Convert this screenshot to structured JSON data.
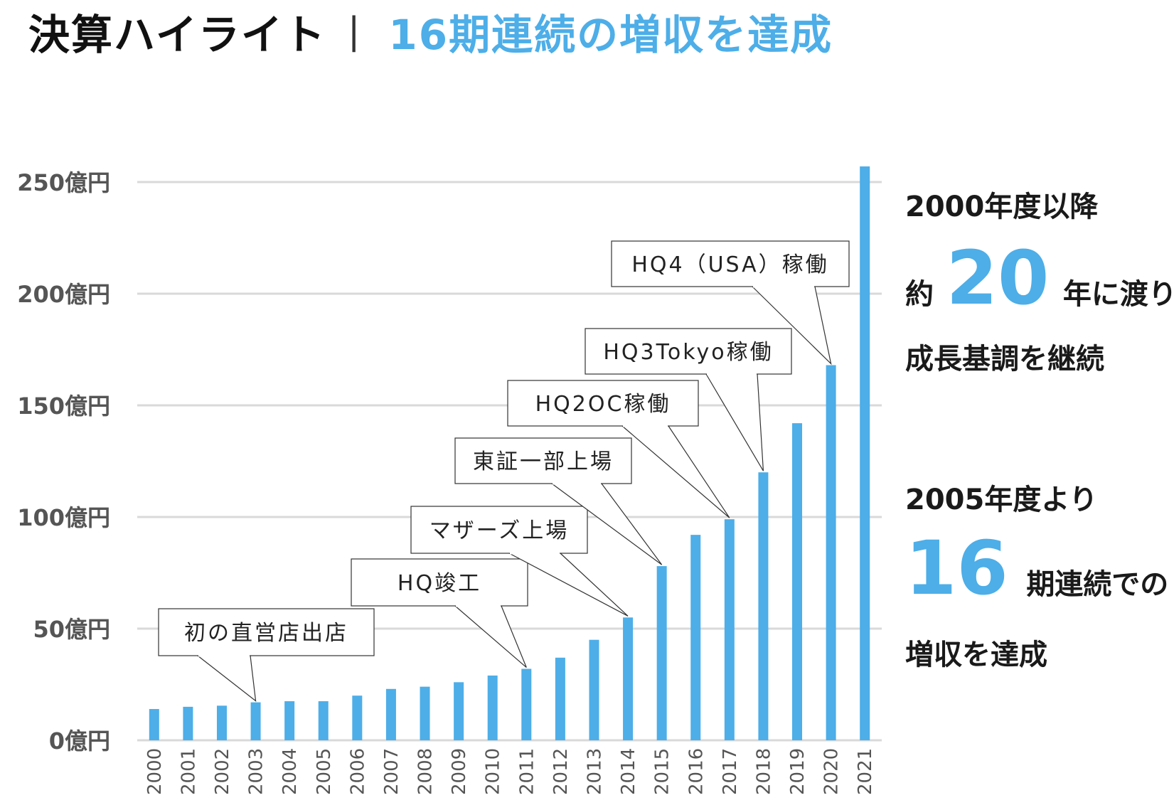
{
  "heading": {
    "title": "決算ハイライト",
    "separator": "|",
    "subtitle": "16期連続の増収を達成"
  },
  "colors": {
    "bar": "#4daee8",
    "accent": "#4daee8",
    "grid": "#d9d9d9",
    "text": "#1a1a1a",
    "tick": "#555555"
  },
  "chart_data": {
    "type": "bar",
    "categories": [
      "2000",
      "2001",
      "2002",
      "2003",
      "2004",
      "2005",
      "2006",
      "2007",
      "2008",
      "2009",
      "2010",
      "2011",
      "2012",
      "2013",
      "2014",
      "2015",
      "2016",
      "2017",
      "2018",
      "2019",
      "2020",
      "2021"
    ],
    "values": [
      14,
      15,
      15.5,
      17,
      17.5,
      17.5,
      20,
      23,
      24,
      26,
      29,
      32,
      37,
      45,
      55,
      78,
      92,
      99,
      120,
      142,
      168,
      257
    ],
    "yticks": [
      "0億円",
      "50億円",
      "100億円",
      "150億円",
      "200億円",
      "250億円"
    ],
    "ytick_values": [
      0,
      50,
      100,
      150,
      200,
      250
    ],
    "ylim": [
      0,
      260
    ],
    "grid": true,
    "annotations": [
      {
        "text": "初の直営店出店",
        "year": "2003"
      },
      {
        "text": "HQ竣工",
        "year": "2011"
      },
      {
        "text": "マザーズ上場",
        "year": "2014"
      },
      {
        "text": "東証一部上場",
        "year": "2015"
      },
      {
        "text": "HQ2OC稼働",
        "year": "2017"
      },
      {
        "text": "HQ3Tokyo稼働",
        "year": "2018"
      },
      {
        "text": "HQ4（USA）稼働",
        "year": "2020"
      }
    ]
  },
  "side_panel": {
    "block1": {
      "line1": "2000年度以降",
      "prefix": "約",
      "number": "20",
      "suffix": "年に渡り",
      "line3": "成長基調を継続"
    },
    "block2": {
      "line1": "2005年度より",
      "number": "16",
      "suffix": "期連続での",
      "line3": "増収を達成"
    }
  }
}
